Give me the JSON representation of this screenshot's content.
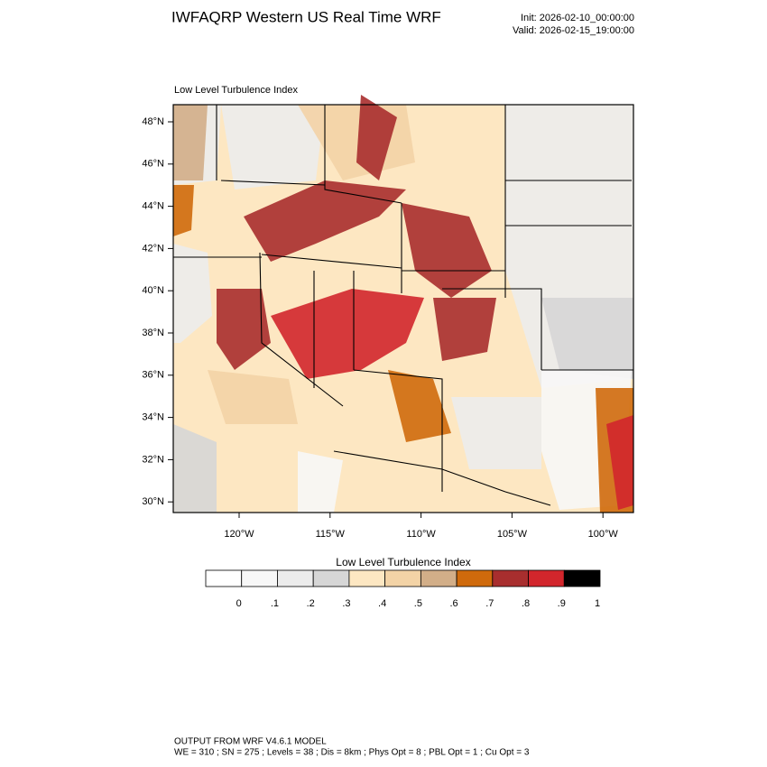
{
  "header": {
    "title": "IWFAQRP Western US Real Time WRF",
    "init": "Init: 2026-02-10_00:00:00",
    "valid": "Valid: 2026-02-15_19:00:00"
  },
  "map": {
    "title": "Low Level Turbulence Index",
    "lat_labels": [
      "48°N",
      "46°N",
      "44°N",
      "42°N",
      "40°N",
      "38°N",
      "36°N",
      "34°N",
      "32°N",
      "30°N"
    ],
    "lon_labels": [
      "120°W",
      "115°W",
      "110°W",
      "105°W",
      "100°W"
    ]
  },
  "colorbar": {
    "title": "Low Level Turbulence Index",
    "labels": [
      "0",
      ".1",
      ".2",
      ".3",
      ".4",
      ".5",
      ".6",
      ".7",
      ".8",
      ".9",
      "1"
    ],
    "colors": [
      "#ffffff",
      "#f7f7f7",
      "#ececec",
      "#d6d6d6",
      "#fde7c2",
      "#f3d3a6",
      "#d2ae88",
      "#cf6a0c",
      "#a82e2e",
      "#d2262c",
      "#000000"
    ]
  },
  "footer": {
    "line1": "OUTPUT FROM WRF V4.6.1 MODEL",
    "line2": "WE = 310 ; SN = 275 ; Levels = 38 ; Dis = 8km ; Phys Opt = 8 ; PBL Opt = 1 ; Cu Opt = 3"
  }
}
